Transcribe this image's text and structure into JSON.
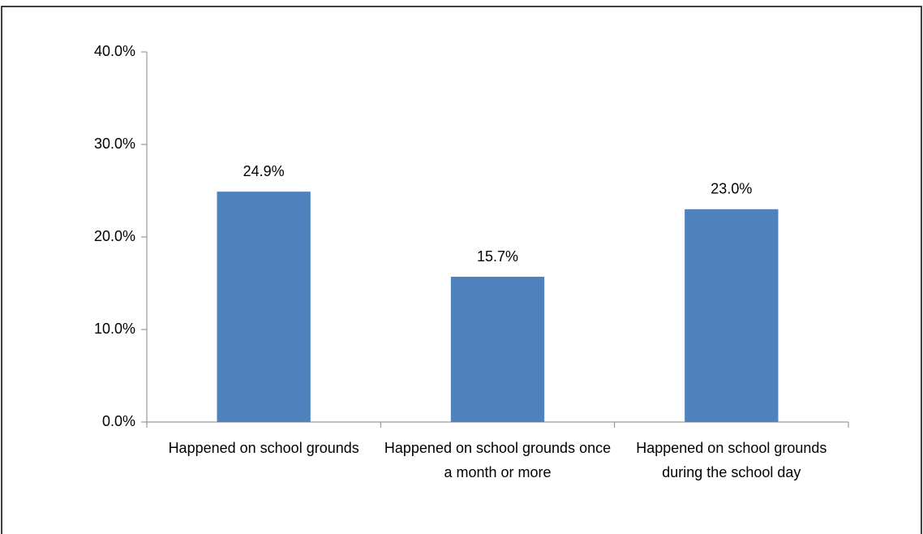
{
  "chart_data": {
    "type": "bar",
    "categories": [
      "Happened on school grounds",
      "Happened on school grounds once a month or more",
      "Happened on school grounds during the school day"
    ],
    "values": [
      24.9,
      15.7,
      23.0
    ],
    "value_labels": [
      "24.9%",
      "15.7%",
      "23.0%"
    ],
    "color": "#4f81bd",
    "ylim": [
      0,
      40
    ],
    "yticks": [
      {
        "value": 0,
        "label": "0.0%"
      },
      {
        "value": 10,
        "label": "10.0%"
      },
      {
        "value": 20,
        "label": "20.0%"
      },
      {
        "value": 30,
        "label": "30.0%"
      },
      {
        "value": 40,
        "label": "40.0%"
      }
    ],
    "grid": false
  }
}
